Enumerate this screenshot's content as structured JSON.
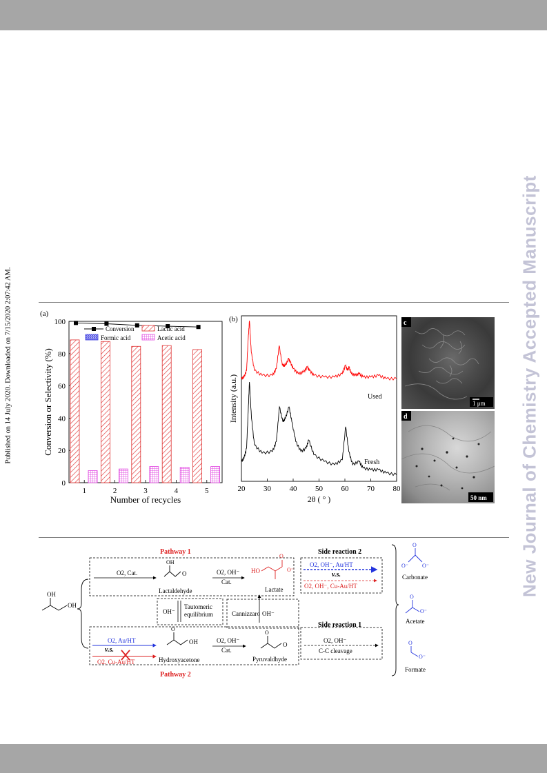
{
  "side_note": "Published on 14 July 2020. Downloaded on 7/15/2020 2:07:42 AM.",
  "watermark": "New Journal of Chemistry Accepted Manuscript",
  "figure": {
    "panel_a_label": "(a)",
    "panel_b_label": "(b)",
    "panel_c_label": "c",
    "panel_d_label": "d",
    "scale_c": "1 μm",
    "scale_d": "50 nm",
    "xrd_used_label": "Used",
    "xrd_fresh_label": "Fresh"
  },
  "chart_data": [
    {
      "type": "bar",
      "title": "",
      "xlabel": "Number of recycles",
      "ylabel": "Conversion or Selectivity (%)",
      "categories": [
        "1",
        "2",
        "3",
        "4",
        "5"
      ],
      "ylim": [
        0,
        100
      ],
      "yticks": [
        "0",
        "20",
        "40",
        "60",
        "80",
        "100"
      ],
      "series": [
        {
          "name": "Conversion",
          "kind": "line-square",
          "color": "#000000",
          "values": [
            99,
            98.5,
            97.5,
            97,
            96.5
          ]
        },
        {
          "name": "Lactic acid",
          "kind": "bar-hatched",
          "color": "#e03030",
          "values": [
            88.5,
            87.5,
            84.5,
            85,
            82.5
          ]
        },
        {
          "name": "Formic acid",
          "kind": "bar-crosshatch",
          "color": "#3a3ae0",
          "values": [
            0,
            0,
            0,
            0,
            0
          ]
        },
        {
          "name": "Acetic acid",
          "kind": "bar-grid",
          "color": "#e040e0",
          "values": [
            7.5,
            8.5,
            10,
            9.5,
            10
          ]
        }
      ],
      "legend": "top"
    },
    {
      "type": "line",
      "title": "",
      "xlabel": "2θ ( ° )",
      "ylabel": "Intensity (a.u.)",
      "xlim": [
        20,
        80
      ],
      "xticks": [
        "20",
        "30",
        "40",
        "50",
        "60",
        "70",
        "80"
      ],
      "series": [
        {
          "name": "Used",
          "color": "#ff0000",
          "x": [
            20,
            21,
            22,
            22.6,
            23.1,
            23.8,
            25,
            28,
            32,
            33.5,
            34.6,
            35.8,
            37,
            38.2,
            38.9,
            40,
            42,
            44,
            45.5,
            46.3,
            48,
            52,
            56,
            59,
            60.2,
            61,
            61.6,
            62.5,
            64,
            65.5,
            67,
            70,
            73,
            76,
            80
          ],
          "y": [
            0.62,
            0.63,
            0.67,
            0.86,
            0.97,
            0.78,
            0.67,
            0.64,
            0.64,
            0.68,
            0.82,
            0.7,
            0.7,
            0.74,
            0.72,
            0.68,
            0.65,
            0.66,
            0.69,
            0.67,
            0.64,
            0.63,
            0.63,
            0.65,
            0.7,
            0.67,
            0.69,
            0.65,
            0.64,
            0.65,
            0.63,
            0.63,
            0.64,
            0.62,
            0.62
          ]
        },
        {
          "name": "Fresh",
          "color": "#000000",
          "x": [
            20,
            21,
            22,
            22.6,
            23.1,
            23.9,
            25,
            28,
            32,
            33.5,
            34.7,
            36,
            37,
            38.4,
            39.5,
            41,
            43,
            45,
            46,
            48,
            52,
            56,
            59,
            60.3,
            61.5,
            63,
            65.5,
            67,
            70,
            73,
            76,
            80
          ],
          "y": [
            0.12,
            0.14,
            0.2,
            0.42,
            0.6,
            0.38,
            0.22,
            0.17,
            0.18,
            0.24,
            0.45,
            0.36,
            0.38,
            0.45,
            0.36,
            0.24,
            0.18,
            0.2,
            0.25,
            0.16,
            0.12,
            0.1,
            0.13,
            0.33,
            0.18,
            0.1,
            0.12,
            0.08,
            0.07,
            0.07,
            0.05,
            0.04
          ]
        }
      ]
    }
  ],
  "scheme": {
    "pathway1": "Pathway 1",
    "pathway2": "Pathway 2",
    "side_reaction_2": "Side reaction 2",
    "side_reaction_1": "Side reaction 1",
    "r1_cond": "O2, Cat.",
    "lactaldehyde": "Lactaldehyde",
    "r2_cond_top": "O2, OH⁻",
    "r2_cond_bot": "Cat.",
    "lactate": "Lactate",
    "lactate_ho": "HO",
    "sr2_blue": "O2, OH⁻, Au/HT",
    "sr2_vs": "v.s.",
    "sr2_red": "O2, OH⁻, Cu-Au/HT",
    "carbonate": "Carbonate",
    "glycerol_oh1": "OH",
    "glycerol_oh2": "OH",
    "oh_minus": "OH⁻",
    "tautomeric1": "Tautomeric",
    "tautomeric2": "equilibrium",
    "cannizzaro": "Cannizzaro",
    "cannizzaro_oh": "OH⁻",
    "acetate": "Acetate",
    "p2_blue": "O2, Au/HT",
    "p2_vs": "v.s.",
    "p2_red": "O2, Cu-Au/HT",
    "hydroxyacetone": "Hydroxyacetone",
    "r3_cond_top": "O2, OH⁻",
    "r3_cond_bot": "Cat.",
    "pyruvaldehyde": "Pyruvaldhyde",
    "sr1_top": "O2, OH⁻",
    "sr1_bot": "C-C cleavage",
    "formate": "Formate",
    "lactaldehyde_oh": "OH",
    "lactaldehyde_o": "O",
    "lactate_o1": "O",
    "lactate_o2": "O⁻",
    "hydroxyacetone_o": "O",
    "hydroxyacetone_oh": "OH",
    "pyruvald_o1": "O",
    "pyruvald_o2": "O",
    "carbonate_o1": "O",
    "carbonate_o2": "O⁻",
    "carbonate_o3": "O⁻",
    "acetate_o1": "O",
    "acetate_o2": "O⁻",
    "formate_o1": "O",
    "formate_o2": "O⁻"
  }
}
